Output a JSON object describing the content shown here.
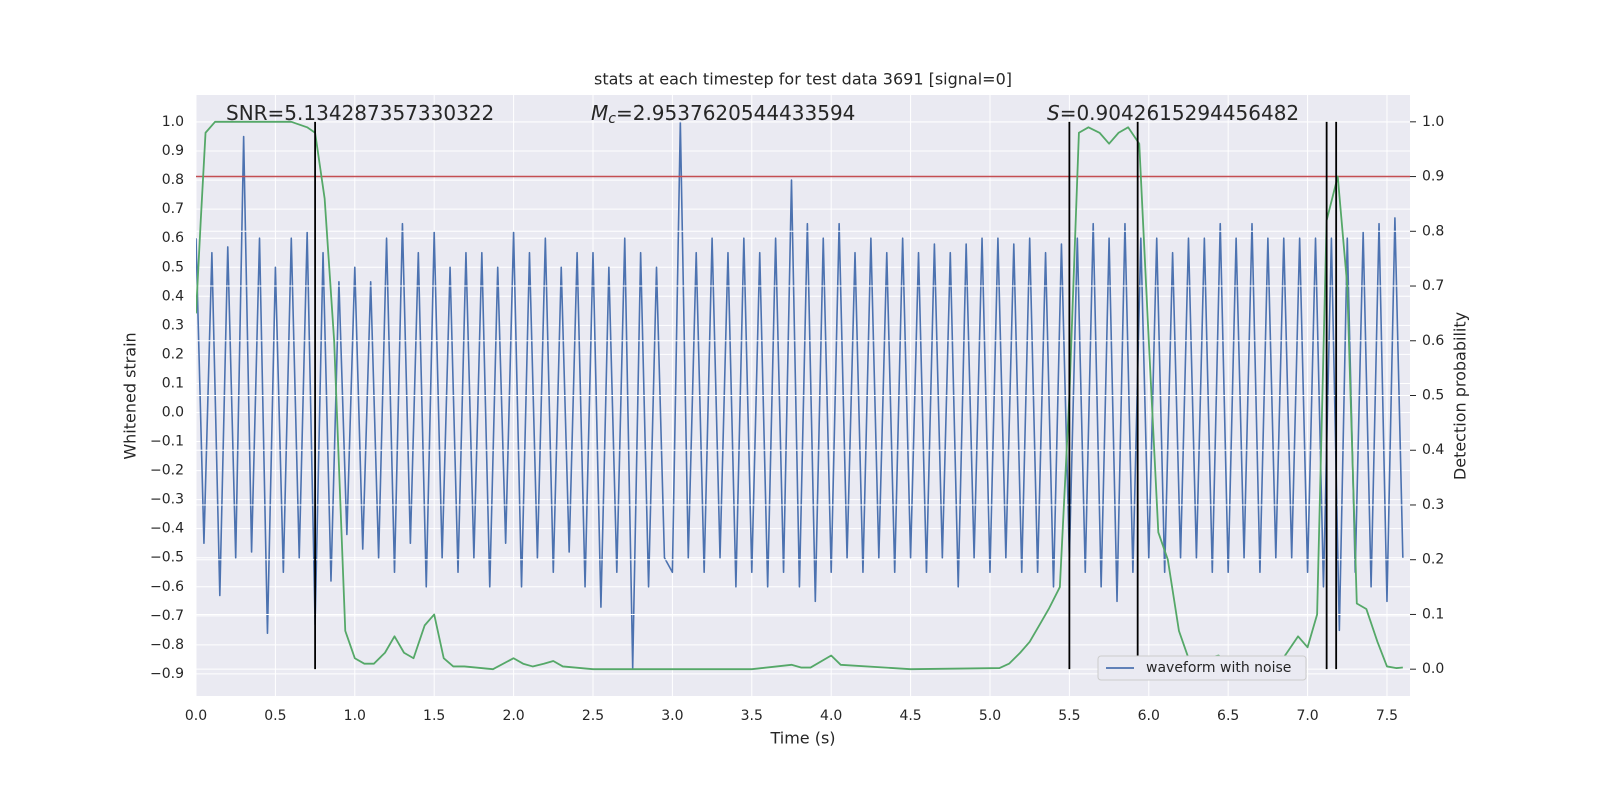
{
  "chart_data": {
    "type": "line",
    "title": "stats at each timestep for test data 3691 [signal=0]",
    "xlabel": "Time (s)",
    "ylabel": "Whitened strain",
    "y2label": "Detection probability",
    "xlim": [
      0,
      7.645
    ],
    "ylim": [
      -0.976,
      1.093
    ],
    "y2lim": [
      -0.049,
      1.049
    ],
    "xticks": [
      {
        "value": 0,
        "label": "0.0"
      },
      0.5,
      {
        "value": 1,
        "label": "1.0"
      },
      1.5,
      {
        "value": 2,
        "label": "2.0"
      },
      2.5,
      {
        "value": 3,
        "label": "3.0"
      },
      3.5,
      {
        "value": 4,
        "label": "4.0"
      },
      4.5,
      {
        "value": 5,
        "label": "5.0"
      },
      5.5,
      {
        "value": 6,
        "label": "6.0"
      },
      6.5,
      {
        "value": 7,
        "label": "7.0"
      },
      7.5
    ],
    "yticks": [
      {
        "value": -0.9,
        "label": "−0.9"
      },
      {
        "value": -0.8,
        "label": "−0.8"
      },
      {
        "value": -0.7,
        "label": "−0.7"
      },
      {
        "value": -0.6,
        "label": "−0.6"
      },
      {
        "value": -0.5,
        "label": "−0.5"
      },
      {
        "value": -0.4,
        "label": "−0.4"
      },
      {
        "value": -0.3,
        "label": "−0.3"
      },
      {
        "value": -0.2,
        "label": "−0.2"
      },
      {
        "value": -0.1,
        "label": "−0.1"
      },
      {
        "value": 0,
        "label": "0.0"
      },
      0.1,
      0.2,
      0.3,
      0.4,
      0.5,
      0.6,
      0.7,
      0.8,
      0.9,
      {
        "value": 1,
        "label": "1.0"
      }
    ],
    "y2ticks": [
      {
        "value": 0,
        "label": "0.0"
      },
      0.1,
      0.2,
      0.3,
      0.4,
      0.5,
      0.6,
      0.7,
      0.8,
      0.9,
      {
        "value": 1,
        "label": "1.0"
      }
    ],
    "grid": true,
    "legend": "lower right",
    "annotations": [
      {
        "text": "SNR=5.134287357330322"
      },
      {
        "symbol": "M",
        "subscript": "c",
        "text": "=2.9537620544433594"
      },
      {
        "symbol": "S",
        "text": "=0.9042615294456482"
      }
    ],
    "series": [
      {
        "name": "waveform with noise",
        "color": "#4c72b0",
        "axis": "y",
        "x": [
          0,
          0.05,
          0.1,
          0.15,
          0.2,
          0.25,
          0.3,
          0.35,
          0.4,
          0.45,
          0.5,
          0.55,
          0.6,
          0.65,
          0.7,
          0.75,
          0.8,
          0.85,
          0.9,
          0.95,
          1,
          1.05,
          1.1,
          1.15,
          1.2,
          1.25,
          1.3,
          1.35,
          1.4,
          1.45,
          1.5,
          1.55,
          1.6,
          1.65,
          1.7,
          1.75,
          1.8,
          1.85,
          1.9,
          1.95,
          2,
          2.05,
          2.1,
          2.15,
          2.2,
          2.25,
          2.3,
          2.35,
          2.4,
          2.45,
          2.5,
          2.55,
          2.6,
          2.65,
          2.7,
          2.75,
          2.8,
          2.85,
          2.9,
          2.95,
          3,
          3.05,
          3.1,
          3.15,
          3.2,
          3.25,
          3.3,
          3.35,
          3.4,
          3.45,
          3.5,
          3.55,
          3.6,
          3.65,
          3.7,
          3.75,
          3.8,
          3.85,
          3.9,
          3.95,
          4,
          4.05,
          4.1,
          4.15,
          4.2,
          4.25,
          4.3,
          4.35,
          4.4,
          4.45,
          4.5,
          4.55,
          4.6,
          4.65,
          4.7,
          4.75,
          4.8,
          4.85,
          4.9,
          4.95,
          5,
          5.05,
          5.1,
          5.15,
          5.2,
          5.25,
          5.3,
          5.35,
          5.4,
          5.45,
          5.5,
          5.55,
          5.6,
          5.65,
          5.7,
          5.75,
          5.8,
          5.85,
          5.9,
          5.95,
          6,
          6.05,
          6.1,
          6.15,
          6.2,
          6.25,
          6.3,
          6.35,
          6.4,
          6.45,
          6.5,
          6.55,
          6.6,
          6.65,
          6.7,
          6.75,
          6.8,
          6.85,
          6.9,
          6.95,
          7,
          7.05,
          7.1,
          7.15,
          7.2,
          7.25,
          7.3,
          7.35,
          7.4,
          7.45,
          7.5,
          7.55,
          7.6
        ],
        "values": [
          0.6,
          -0.45,
          0.55,
          -0.63,
          0.57,
          -0.5,
          0.95,
          -0.48,
          0.6,
          -0.76,
          0.5,
          -0.55,
          0.6,
          -0.5,
          0.62,
          -0.73,
          0.55,
          -0.58,
          0.45,
          -0.42,
          0.5,
          -0.47,
          0.45,
          -0.5,
          0.6,
          -0.55,
          0.65,
          -0.45,
          0.55,
          -0.6,
          0.62,
          -0.5,
          0.5,
          -0.55,
          0.55,
          -0.5,
          0.55,
          -0.6,
          0.5,
          -0.45,
          0.62,
          -0.6,
          0.55,
          -0.5,
          0.6,
          -0.55,
          0.5,
          -0.48,
          0.55,
          -0.6,
          0.55,
          -0.67,
          0.5,
          -0.55,
          0.6,
          -0.88,
          0.55,
          -0.6,
          0.5,
          -0.5,
          -0.55,
          1.0,
          -0.5,
          0.55,
          -0.55,
          0.6,
          -0.5,
          0.55,
          -0.6,
          0.6,
          -0.55,
          0.55,
          -0.6,
          0.6,
          -0.55,
          0.8,
          -0.6,
          0.65,
          -0.65,
          0.6,
          -0.55,
          0.65,
          -0.5,
          0.55,
          -0.55,
          0.6,
          -0.5,
          0.55,
          -0.55,
          0.6,
          -0.5,
          0.55,
          -0.55,
          0.58,
          -0.5,
          0.55,
          -0.6,
          0.58,
          -0.5,
          0.6,
          -0.55,
          0.6,
          -0.5,
          0.58,
          -0.55,
          0.6,
          -0.55,
          0.55,
          -0.6,
          0.58,
          -0.5,
          0.6,
          -0.55,
          0.65,
          -0.6,
          0.6,
          -0.65,
          0.65,
          -0.55,
          0.6,
          -0.5,
          0.6,
          -0.55,
          0.55,
          -0.5,
          0.6,
          -0.5,
          0.6,
          -0.55,
          0.65,
          -0.55,
          0.6,
          -0.5,
          0.65,
          -0.55,
          0.6,
          -0.5,
          0.6,
          -0.5,
          0.6,
          -0.55,
          0.6,
          -0.6,
          0.6,
          -0.75,
          0.6,
          -0.55,
          0.62,
          -0.6,
          0.65,
          -0.65,
          0.67,
          -0.5
        ]
      },
      {
        "color": "#55a868",
        "axis": "y2",
        "x": [
          0,
          0.03,
          0.06,
          0.12,
          0.3,
          0.6,
          0.7,
          0.75,
          0.81,
          0.87,
          0.94,
          1,
          1.06,
          1.12,
          1.19,
          1.25,
          1.31,
          1.37,
          1.44,
          1.5,
          1.56,
          1.62,
          1.69,
          1.87,
          2,
          2.06,
          2.12,
          2.19,
          2.25,
          2.31,
          2.5,
          3,
          3.5,
          3.75,
          3.81,
          3.87,
          4,
          4.06,
          4.5,
          5.06,
          5.12,
          5.19,
          5.25,
          5.31,
          5.37,
          5.44,
          5.5,
          5.56,
          5.62,
          5.69,
          5.75,
          5.81,
          5.87,
          5.94,
          6,
          6.06,
          6.12,
          6.19,
          6.25,
          6.31,
          6.37,
          6.44,
          6.5,
          6.56,
          6.62,
          6.75,
          6.81,
          6.87,
          6.94,
          7,
          7.06,
          7.12,
          7.19,
          7.25,
          7.31,
          7.37,
          7.44,
          7.5,
          7.56,
          7.6
        ],
        "values": [
          0.65,
          0.82,
          0.98,
          1.0,
          1.0,
          1.0,
          0.99,
          0.98,
          0.86,
          0.6,
          0.07,
          0.02,
          0.01,
          0.01,
          0.03,
          0.06,
          0.03,
          0.02,
          0.08,
          0.1,
          0.02,
          0.005,
          0.005,
          0.0,
          0.02,
          0.01,
          0.005,
          0.01,
          0.015,
          0.005,
          0.0,
          0.0,
          0.0,
          0.008,
          0.003,
          0.003,
          0.025,
          0.008,
          0.0,
          0.002,
          0.01,
          0.03,
          0.05,
          0.08,
          0.11,
          0.15,
          0.5,
          0.98,
          0.99,
          0.98,
          0.96,
          0.98,
          0.99,
          0.96,
          0.6,
          0.25,
          0.2,
          0.07,
          0.02,
          0.01,
          0.02,
          0.025,
          0.01,
          0.01,
          0.02,
          0.0,
          0.005,
          0.03,
          0.06,
          0.04,
          0.1,
          0.82,
          0.9,
          0.7,
          0.12,
          0.11,
          0.05,
          0.005,
          0.002,
          0.003
        ]
      }
    ],
    "hline": {
      "value": 0.9,
      "axis": "y2",
      "color": "#c44e52"
    },
    "vlines": [
      0.75,
      5.5,
      5.93,
      7.12,
      7.18
    ],
    "vline_range": [
      0,
      1
    ],
    "vline_color": "#000000"
  }
}
